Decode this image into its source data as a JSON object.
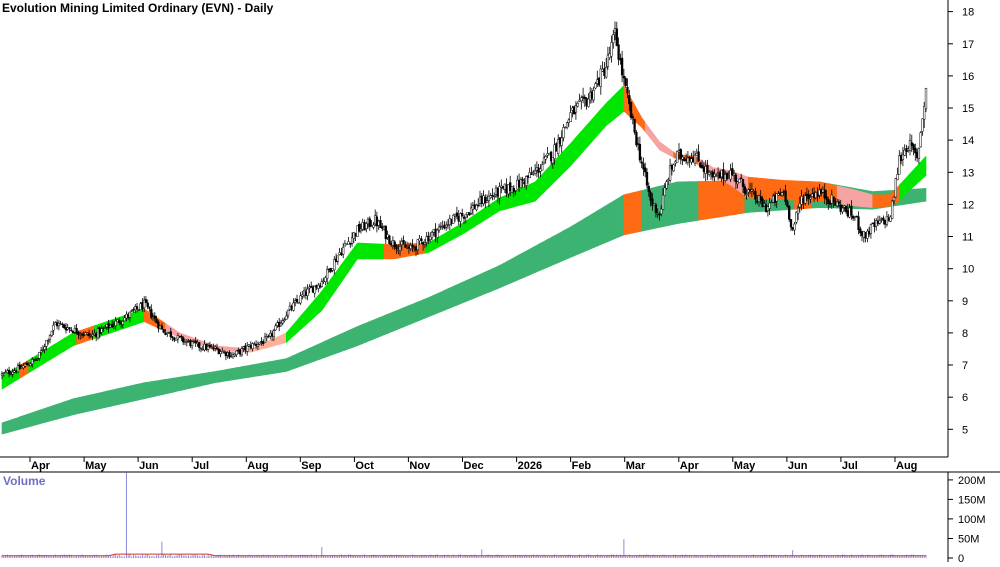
{
  "chart_data": {
    "type": "candlestick",
    "title": "Evolution Mining Limited Ordinary (EVN) - Daily",
    "x_labels": [
      "Apr",
      "May",
      "Jun",
      "Jul",
      "Aug",
      "Sep",
      "Oct",
      "Nov",
      "Dec",
      "2026",
      "Feb",
      "Mar",
      "Apr",
      "May",
      "Jun",
      "Jul",
      "Aug"
    ],
    "y_ticks": [
      5,
      6,
      7,
      8,
      9,
      10,
      11,
      12,
      13,
      14,
      15,
      16,
      17,
      18
    ],
    "ylim": [
      4.2,
      18.3
    ],
    "grid": false,
    "price_anchors": [
      [
        0,
        6.7
      ],
      [
        10,
        6.9
      ],
      [
        20,
        7.2
      ],
      [
        30,
        8.3
      ],
      [
        40,
        8.1
      ],
      [
        50,
        7.9
      ],
      [
        60,
        8.2
      ],
      [
        70,
        8.5
      ],
      [
        80,
        8.9
      ],
      [
        90,
        8.1
      ],
      [
        100,
        7.8
      ],
      [
        110,
        7.6
      ],
      [
        120,
        7.5
      ],
      [
        130,
        7.3
      ],
      [
        140,
        7.6
      ],
      [
        150,
        7.8
      ],
      [
        160,
        8.6
      ],
      [
        170,
        9.2
      ],
      [
        180,
        9.6
      ],
      [
        190,
        10.5
      ],
      [
        200,
        11.2
      ],
      [
        210,
        11.5
      ],
      [
        220,
        10.8
      ],
      [
        230,
        10.6
      ],
      [
        240,
        11.0
      ],
      [
        250,
        11.4
      ],
      [
        260,
        11.7
      ],
      [
        270,
        12.1
      ],
      [
        280,
        12.4
      ],
      [
        290,
        12.6
      ],
      [
        300,
        13.0
      ],
      [
        310,
        13.6
      ],
      [
        320,
        14.8
      ],
      [
        330,
        15.3
      ],
      [
        340,
        16.3
      ],
      [
        345,
        17.3
      ],
      [
        350,
        15.8
      ],
      [
        355,
        14.5
      ],
      [
        360,
        13.3
      ],
      [
        365,
        12.1
      ],
      [
        370,
        11.7
      ],
      [
        375,
        12.9
      ],
      [
        380,
        13.5
      ],
      [
        390,
        13.5
      ],
      [
        400,
        12.8
      ],
      [
        410,
        13.0
      ],
      [
        420,
        12.4
      ],
      [
        430,
        11.9
      ],
      [
        440,
        12.4
      ],
      [
        445,
        11.2
      ],
      [
        450,
        12.2
      ],
      [
        460,
        12.4
      ],
      [
        470,
        12.0
      ],
      [
        480,
        11.6
      ],
      [
        485,
        11.0
      ],
      [
        490,
        11.3
      ],
      [
        500,
        11.6
      ],
      [
        505,
        13.4
      ],
      [
        510,
        13.9
      ],
      [
        515,
        13.4
      ],
      [
        520,
        15.6
      ]
    ],
    "fast_band": {
      "upper": [
        [
          0,
          6.65
        ],
        [
          40,
          8.0
        ],
        [
          80,
          8.75
        ],
        [
          100,
          8.0
        ],
        [
          120,
          7.6
        ],
        [
          140,
          7.5
        ],
        [
          160,
          8.0
        ],
        [
          180,
          9.3
        ],
        [
          200,
          10.8
        ],
        [
          220,
          10.75
        ],
        [
          240,
          10.8
        ],
        [
          260,
          11.45
        ],
        [
          280,
          12.2
        ],
        [
          300,
          12.7
        ],
        [
          320,
          13.9
        ],
        [
          340,
          15.15
        ],
        [
          350,
          15.7
        ],
        [
          360,
          14.7
        ],
        [
          370,
          13.95
        ],
        [
          380,
          13.55
        ],
        [
          390,
          13.5
        ],
        [
          400,
          13.15
        ],
        [
          410,
          13.05
        ],
        [
          420,
          12.85
        ],
        [
          440,
          12.75
        ],
        [
          460,
          12.7
        ],
        [
          480,
          12.45
        ],
        [
          490,
          12.3
        ],
        [
          500,
          12.3
        ],
        [
          505,
          12.6
        ],
        [
          510,
          12.9
        ],
        [
          520,
          13.5
        ]
      ],
      "lower": [
        [
          0,
          6.25
        ],
        [
          40,
          7.6
        ],
        [
          80,
          8.35
        ],
        [
          100,
          7.85
        ],
        [
          120,
          7.45
        ],
        [
          140,
          7.4
        ],
        [
          160,
          7.7
        ],
        [
          180,
          8.7
        ],
        [
          200,
          10.3
        ],
        [
          220,
          10.3
        ],
        [
          240,
          10.5
        ],
        [
          260,
          11.1
        ],
        [
          280,
          11.8
        ],
        [
          300,
          12.1
        ],
        [
          320,
          13.2
        ],
        [
          340,
          14.45
        ],
        [
          350,
          14.9
        ],
        [
          360,
          14.4
        ],
        [
          370,
          13.7
        ],
        [
          380,
          13.4
        ],
        [
          390,
          13.3
        ],
        [
          400,
          12.9
        ],
        [
          410,
          12.6
        ],
        [
          420,
          12.2
        ],
        [
          440,
          12.15
        ],
        [
          460,
          12.1
        ],
        [
          480,
          11.95
        ],
        [
          490,
          11.9
        ],
        [
          500,
          11.95
        ],
        [
          505,
          12.1
        ],
        [
          510,
          12.4
        ],
        [
          520,
          12.9
        ]
      ],
      "colored_segments": [
        [
          0,
          10,
          "#00e600"
        ],
        [
          10,
          15,
          "#ff6a14"
        ],
        [
          15,
          42,
          "#00e600"
        ],
        [
          42,
          52,
          "#ff6a14"
        ],
        [
          52,
          80,
          "#00e600"
        ],
        [
          80,
          92,
          "#ff6a14"
        ],
        [
          92,
          140,
          "#f5a3a3"
        ],
        [
          140,
          160,
          "#ffb09a"
        ],
        [
          160,
          215,
          "#00e600"
        ],
        [
          215,
          238,
          "#ff6a14"
        ],
        [
          238,
          350,
          "#00e600"
        ],
        [
          350,
          362,
          "#ff6a14"
        ],
        [
          362,
          378,
          "#f5a3a3"
        ],
        [
          378,
          392,
          "#ff6a14"
        ],
        [
          392,
          420,
          "#f5a3a3"
        ],
        [
          420,
          470,
          "#ff6a14"
        ],
        [
          470,
          490,
          "#f5a3a3"
        ],
        [
          490,
          505,
          "#ff6a14"
        ],
        [
          505,
          520,
          "#00e600"
        ]
      ]
    },
    "slow_band": {
      "upper": [
        [
          0,
          5.2
        ],
        [
          40,
          5.95
        ],
        [
          80,
          6.45
        ],
        [
          120,
          6.8
        ],
        [
          160,
          7.2
        ],
        [
          200,
          8.2
        ],
        [
          240,
          9.1
        ],
        [
          280,
          10.1
        ],
        [
          320,
          11.3
        ],
        [
          350,
          12.3
        ],
        [
          380,
          12.7
        ],
        [
          420,
          12.75
        ],
        [
          460,
          12.7
        ],
        [
          490,
          12.4
        ],
        [
          520,
          12.5
        ]
      ],
      "lower": [
        [
          0,
          4.85
        ],
        [
          40,
          5.45
        ],
        [
          80,
          5.95
        ],
        [
          120,
          6.45
        ],
        [
          160,
          6.8
        ],
        [
          200,
          7.6
        ],
        [
          240,
          8.5
        ],
        [
          280,
          9.4
        ],
        [
          320,
          10.35
        ],
        [
          350,
          11.05
        ],
        [
          380,
          11.4
        ],
        [
          420,
          11.75
        ],
        [
          460,
          11.9
        ],
        [
          490,
          11.85
        ],
        [
          520,
          12.1
        ]
      ],
      "colored_segments": [
        [
          0,
          350,
          "#3cb371"
        ],
        [
          350,
          360,
          "#ff6a14"
        ],
        [
          360,
          392,
          "#3cb371"
        ],
        [
          392,
          418,
          "#ff6a14"
        ],
        [
          418,
          446,
          "#3cb371"
        ],
        [
          446,
          456,
          "#ff6a14"
        ],
        [
          456,
          520,
          "#3cb371"
        ]
      ]
    },
    "volume": {
      "label": "Volume",
      "y_ticks": [
        "200M",
        "150M",
        "100M",
        "50M",
        "0"
      ],
      "ylim": [
        0,
        215
      ],
      "baseline": 6,
      "spikes": [
        [
          70,
          218
        ],
        [
          90,
          42
        ],
        [
          180,
          28
        ],
        [
          270,
          22
        ],
        [
          350,
          48
        ],
        [
          445,
          20
        ]
      ]
    }
  }
}
